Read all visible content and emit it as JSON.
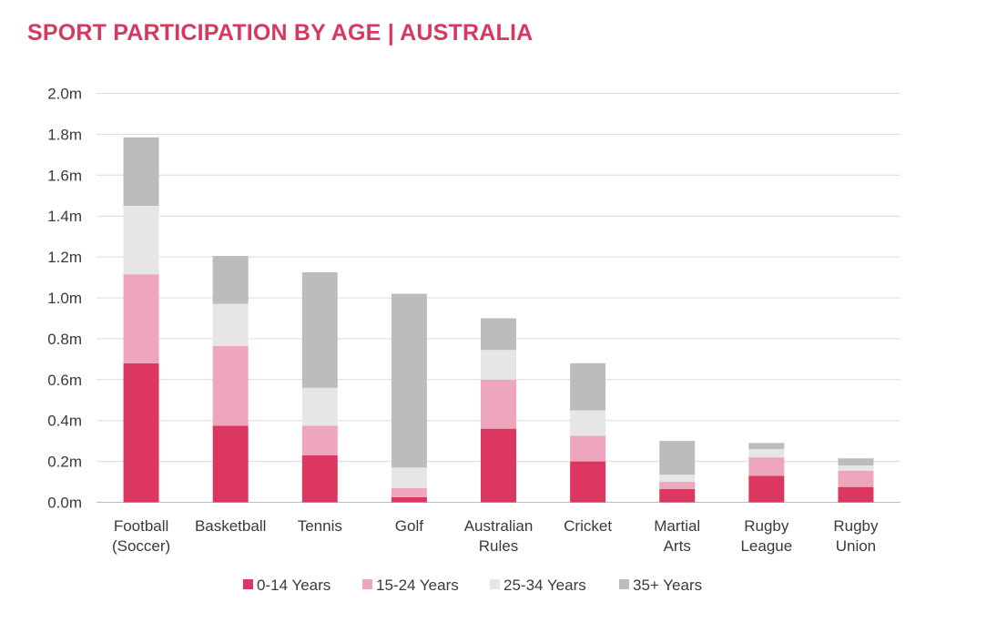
{
  "chart_data": {
    "type": "bar",
    "stacked": true,
    "title": "SPORT PARTICIPATION BY AGE | AUSTRALIA",
    "xlabel": "",
    "ylabel": "",
    "ylim": [
      0,
      2.0
    ],
    "y_ticks": [
      "0.0m",
      "0.2m",
      "0.4m",
      "0.6m",
      "0.8m",
      "1.0m",
      "1.2m",
      "1.4m",
      "1.6m",
      "1.8m",
      "2.0m"
    ],
    "grid": true,
    "legend_position": "bottom",
    "categories": [
      [
        "Football",
        "(Soccer)"
      ],
      [
        "Basketball"
      ],
      [
        "Tennis"
      ],
      [
        "Golf"
      ],
      [
        "Australian",
        "Rules"
      ],
      [
        "Cricket"
      ],
      [
        "Martial",
        "Arts"
      ],
      [
        "Rugby",
        "League"
      ],
      [
        "Rugby",
        "Union"
      ]
    ],
    "series": [
      {
        "name": "0-14 Years",
        "color": "#dc3760",
        "values": [
          0.68,
          0.375,
          0.23,
          0.025,
          0.36,
          0.2,
          0.065,
          0.13,
          0.075
        ]
      },
      {
        "name": "15-24 Years",
        "color": "#eea6be",
        "values": [
          0.435,
          0.39,
          0.145,
          0.045,
          0.24,
          0.125,
          0.035,
          0.09,
          0.08
        ]
      },
      {
        "name": "25-34 Years",
        "color": "#e6e6e6",
        "values": [
          0.335,
          0.205,
          0.185,
          0.1,
          0.145,
          0.125,
          0.035,
          0.04,
          0.025
        ]
      },
      {
        "name": "35+ Years",
        "color": "#bcbcbc",
        "values": [
          0.335,
          0.235,
          0.565,
          0.85,
          0.155,
          0.23,
          0.165,
          0.03,
          0.035
        ]
      }
    ]
  }
}
